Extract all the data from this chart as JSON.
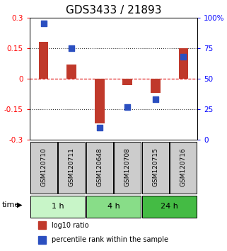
{
  "title": "GDS3433 / 21893",
  "samples": [
    "GSM120710",
    "GSM120711",
    "GSM120648",
    "GSM120708",
    "GSM120715",
    "GSM120716"
  ],
  "log10_ratio": [
    0.18,
    0.07,
    -0.22,
    -0.03,
    -0.07,
    0.15
  ],
  "percentile_rank": [
    95,
    75,
    10,
    27,
    33,
    68
  ],
  "ylim_left": [
    -0.3,
    0.3
  ],
  "ylim_right": [
    0,
    100
  ],
  "yticks_left": [
    -0.3,
    -0.15,
    0,
    0.15,
    0.3
  ],
  "yticks_right": [
    0,
    25,
    50,
    75,
    100
  ],
  "ytick_labels_left": [
    "-0.3",
    "-0.15",
    "0",
    "0.15",
    "0.3"
  ],
  "ytick_labels_right": [
    "0",
    "25",
    "50",
    "75",
    "100%"
  ],
  "hlines": [
    -0.15,
    0,
    0.15
  ],
  "time_groups": [
    {
      "label": "1 h",
      "start": 0,
      "end": 2,
      "color": "#c8f5c8"
    },
    {
      "label": "4 h",
      "start": 2,
      "end": 4,
      "color": "#88dd88"
    },
    {
      "label": "24 h",
      "start": 4,
      "end": 6,
      "color": "#44bb44"
    }
  ],
  "bar_color": "#c0392b",
  "dot_color": "#2b4fc0",
  "bar_width": 0.35,
  "dot_size": 40,
  "sample_box_color": "#cccccc",
  "legend_bar_label": "log10 ratio",
  "legend_dot_label": "percentile rank within the sample",
  "title_fontsize": 11,
  "tick_fontsize": 7.5,
  "label_fontsize": 8,
  "time_label": "time",
  "zero_line_color": "#dd0000",
  "dotted_line_color": "#333333"
}
